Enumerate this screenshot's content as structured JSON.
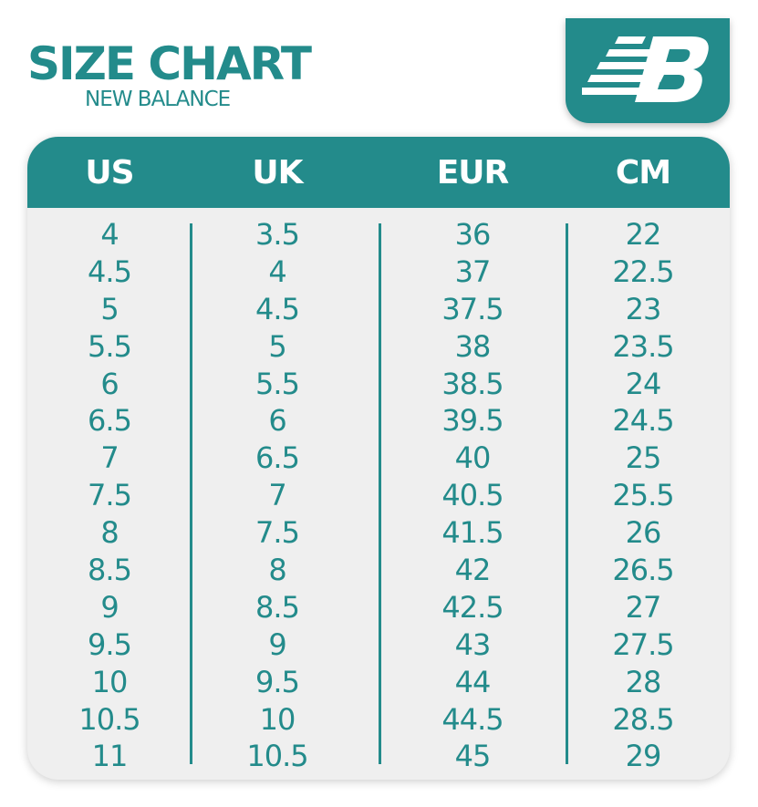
{
  "header": {
    "title": "SIZE CHART",
    "subtitle": "NEW BALANCE",
    "logo_text": "NB"
  },
  "colors": {
    "accent": "#238b8b",
    "background": "#efefef"
  },
  "table": {
    "columns": [
      "US",
      "UK",
      "EUR",
      "CM"
    ],
    "us": [
      "4",
      "4.5",
      "5",
      "5.5",
      "6",
      "6.5",
      "7",
      "7.5",
      "8",
      "8.5",
      "9",
      "9.5",
      "10",
      "10.5",
      "11"
    ],
    "uk": [
      "3.5",
      "4",
      "4.5",
      "5",
      "5.5",
      "6",
      "6.5",
      "7",
      "7.5",
      "8",
      "8.5",
      "9",
      "9.5",
      "10",
      "10.5"
    ],
    "eur": [
      "36",
      "37",
      "37.5",
      "38",
      "38.5",
      "39.5",
      "40",
      "40.5",
      "41.5",
      "42",
      "42.5",
      "43",
      "44",
      "44.5",
      "45"
    ],
    "cm": [
      "22",
      "22.5",
      "23",
      "23.5",
      "24",
      "24.5",
      "25",
      "25.5",
      "26",
      "26.5",
      "27",
      "27.5",
      "28",
      "28.5",
      "29"
    ]
  }
}
